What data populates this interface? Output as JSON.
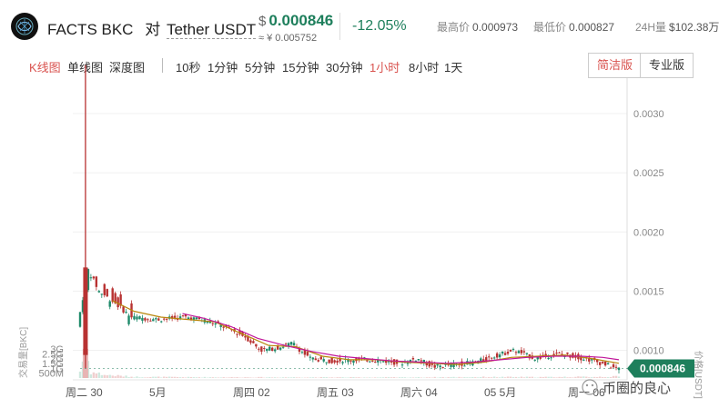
{
  "header": {
    "base": "FACTS BKC",
    "vs": "对",
    "quote": "Tether USDT",
    "price_currency": "$",
    "price": "0.000846",
    "price_cny": "≈ ¥ 0.005752",
    "change": "-12.05%",
    "high_label": "最高价",
    "high": "0.000973",
    "low_label": "最低价",
    "low": "0.000827",
    "vol_label": "24H量",
    "vol": "$102.38万"
  },
  "toolbar": {
    "chart_types": [
      {
        "label": "K线图",
        "active": true
      },
      {
        "label": "单线图",
        "active": false
      },
      {
        "label": "深度图",
        "active": false
      }
    ],
    "intervals": [
      {
        "label": "10秒",
        "active": false
      },
      {
        "label": "1分钟",
        "active": false
      },
      {
        "label": "5分钟",
        "active": false
      },
      {
        "label": "15分钟",
        "active": false
      },
      {
        "label": "30分钟",
        "active": false
      },
      {
        "label": "1小时",
        "active": true
      },
      {
        "label": "8小时",
        "active": false
      },
      {
        "label": "1天",
        "active": false
      }
    ],
    "simple_label": "简洁版",
    "pro_label": "专业版"
  },
  "colors": {
    "up": "#1e8a6a",
    "down": "#b83232",
    "ma_fast": "#b8860b",
    "ma_slow": "#c0169a",
    "price_tag": "#1e7f5c"
  },
  "chart_data": {
    "type": "candlestick",
    "price_axis_label": "价格[USDT]",
    "volume_axis_label": "交易量[BKC]",
    "price_ticks": [
      "0.0030",
      "0.0025",
      "0.0020",
      "0.0015",
      "0.0010"
    ],
    "price_tick_values": [
      0.003,
      0.0025,
      0.002,
      0.0015,
      0.001
    ],
    "ylim": [
      0.00075,
      0.0033
    ],
    "volume_ticks": [
      "3G",
      "2.5G",
      "2G",
      "1.5G",
      "1G",
      "500M"
    ],
    "volume_tick_values": [
      3000000000,
      2500000000,
      2000000000,
      1500000000,
      1000000000,
      500000000
    ],
    "x_labels": [
      "周二 30",
      "5月",
      "周四 02",
      "周五 03",
      "周六 04",
      "05 5月",
      "周一 06"
    ],
    "current_price": "0.000846",
    "current_value": 0.000846,
    "price_trend": [
      [
        0.0,
        0.0012
      ],
      [
        0.02,
        0.00168
      ],
      [
        0.04,
        0.0015
      ],
      [
        0.07,
        0.0014
      ],
      [
        0.1,
        0.00128
      ],
      [
        0.15,
        0.00126
      ],
      [
        0.2,
        0.00128
      ],
      [
        0.24,
        0.00125
      ],
      [
        0.27,
        0.0012
      ],
      [
        0.31,
        0.00112
      ],
      [
        0.34,
        0.001
      ],
      [
        0.37,
        0.00102
      ],
      [
        0.4,
        0.00106
      ],
      [
        0.43,
        0.00093
      ],
      [
        0.47,
        0.00091
      ],
      [
        0.51,
        0.00092
      ],
      [
        0.55,
        0.00092
      ],
      [
        0.6,
        0.00089
      ],
      [
        0.63,
        0.00093
      ],
      [
        0.66,
        0.00086
      ],
      [
        0.7,
        0.00088
      ],
      [
        0.74,
        0.0009
      ],
      [
        0.78,
        0.00096
      ],
      [
        0.81,
        0.001
      ],
      [
        0.85,
        0.00093
      ],
      [
        0.89,
        0.00097
      ],
      [
        0.92,
        0.00095
      ],
      [
        0.95,
        0.00092
      ],
      [
        0.98,
        0.00088
      ],
      [
        1.0,
        0.000846
      ]
    ],
    "spike": {
      "position": 0.01,
      "high": 0.00341,
      "low": 0.00085
    },
    "ma_fast": [
      [
        0.06,
        0.00142
      ],
      [
        0.1,
        0.00133
      ],
      [
        0.15,
        0.00128
      ],
      [
        0.2,
        0.00126
      ],
      [
        0.25,
        0.00124
      ],
      [
        0.3,
        0.00114
      ],
      [
        0.35,
        0.00104
      ],
      [
        0.4,
        0.00103
      ],
      [
        0.45,
        0.00095
      ],
      [
        0.5,
        0.00092
      ],
      [
        0.55,
        0.00092
      ],
      [
        0.6,
        0.0009
      ],
      [
        0.65,
        0.00089
      ],
      [
        0.7,
        0.00088
      ],
      [
        0.75,
        0.0009
      ],
      [
        0.8,
        0.00094
      ],
      [
        0.85,
        0.00095
      ],
      [
        0.9,
        0.00096
      ],
      [
        0.95,
        0.00093
      ],
      [
        1.0,
        0.00089
      ]
    ],
    "ma_slow": [
      [
        0.19,
        0.00131
      ],
      [
        0.23,
        0.00127
      ],
      [
        0.28,
        0.0012
      ],
      [
        0.33,
        0.0011
      ],
      [
        0.38,
        0.00104
      ],
      [
        0.43,
        0.00099
      ],
      [
        0.48,
        0.00095
      ],
      [
        0.53,
        0.00093
      ],
      [
        0.58,
        0.00091
      ],
      [
        0.63,
        0.0009
      ],
      [
        0.68,
        0.00089
      ],
      [
        0.73,
        0.0009
      ],
      [
        0.78,
        0.00092
      ],
      [
        0.83,
        0.00094
      ],
      [
        0.88,
        0.00095
      ],
      [
        0.93,
        0.00095
      ],
      [
        0.97,
        0.00094
      ],
      [
        1.0,
        0.00092
      ]
    ],
    "volume_level": [
      [
        0.0,
        0.7
      ],
      [
        0.01,
        3.0
      ],
      [
        0.02,
        0.6
      ],
      [
        0.05,
        0.3
      ],
      [
        0.1,
        0.12
      ],
      [
        0.2,
        0.08
      ],
      [
        0.4,
        0.07
      ],
      [
        0.6,
        0.06
      ],
      [
        0.75,
        0.1
      ],
      [
        0.85,
        0.09
      ],
      [
        0.95,
        0.12
      ],
      [
        1.0,
        0.15
      ]
    ]
  },
  "watermark": "币圈的良心"
}
